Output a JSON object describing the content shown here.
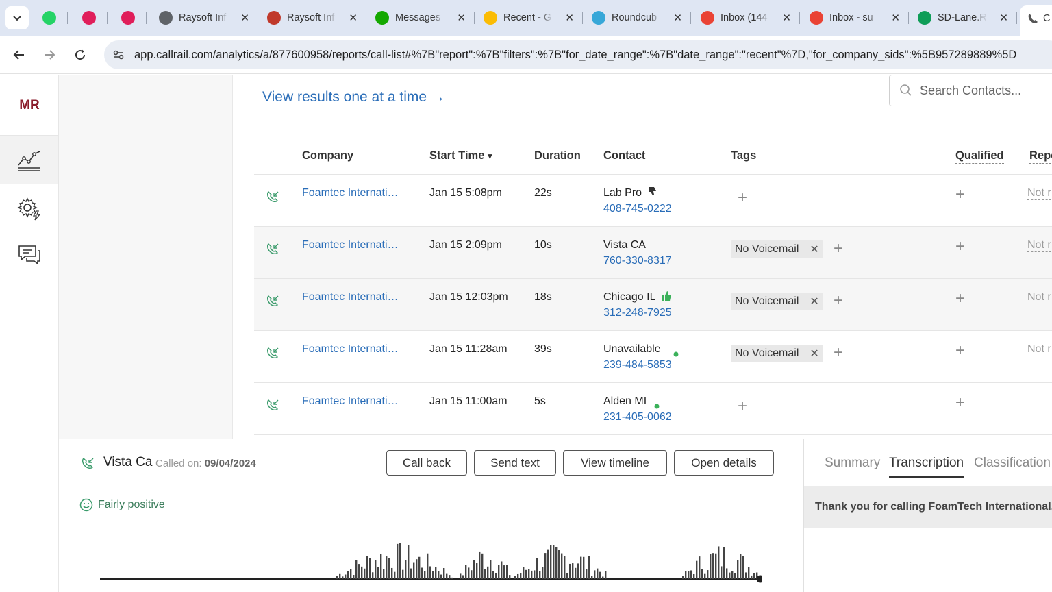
{
  "browser": {
    "tabs": [
      {
        "title": "",
        "icon": "whatsapp-icon",
        "color": "#25d366"
      },
      {
        "title": "",
        "icon": "slack-icon",
        "color": "#e01e5a"
      },
      {
        "title": "",
        "icon": "slack-icon",
        "color": "#e01e5a"
      },
      {
        "title": "Raysoft Inf",
        "icon": "globe-icon",
        "color": "#5f6368"
      },
      {
        "title": "Raysoft Inf",
        "icon": "raysoft-icon",
        "color": "#c0392b"
      },
      {
        "title": "Messages",
        "icon": "upwork-icon",
        "color": "#14a800"
      },
      {
        "title": "Recent - G",
        "icon": "drive-icon",
        "color": "#fbbc04"
      },
      {
        "title": "Roundcub",
        "icon": "roundcube-icon",
        "color": "#37a7d8"
      },
      {
        "title": "Inbox (144",
        "icon": "gmail-icon",
        "color": "#ea4335"
      },
      {
        "title": "Inbox - su",
        "icon": "gmail-icon",
        "color": "#ea4335"
      },
      {
        "title": "SD-Lane.R",
        "icon": "sheets-icon",
        "color": "#0f9d58"
      },
      {
        "title": "C",
        "icon": "callrail-icon",
        "color": "#555555"
      }
    ],
    "url": "app.callrail.com/analytics/a/877600958/reports/call-list#%7B\"report\":%7B\"filters\":%7B\"for_date_range\":%7B\"date_range\":\"recent\"%7D,\"for_company_sids\":%5B957289889%5D"
  },
  "rail": {
    "initials": "MR"
  },
  "list": {
    "view_link": "View results one at a time →",
    "search_placeholder": "Search Contacts...",
    "columns": {
      "company": "Company",
      "start_time": "Start Time",
      "duration": "Duration",
      "contact": "Contact",
      "tags": "Tags",
      "qualified": "Qualified",
      "reported": "Repo"
    },
    "rows": [
      {
        "company": "Foamtec Internati…",
        "start": "Jan 15 5:08pm",
        "duration": "22s",
        "contact": "Lab Pro",
        "phone": "408-745-0222",
        "tag": "",
        "status": "Not r"
      },
      {
        "company": "Foamtec Internati…",
        "start": "Jan 15 2:09pm",
        "duration": "10s",
        "contact": "Vista CA",
        "phone": "760-330-8317",
        "tag": "No Voicemail",
        "status": "Not r"
      },
      {
        "company": "Foamtec Internati…",
        "start": "Jan 15 12:03pm",
        "duration": "18s",
        "contact": "Chicago IL",
        "phone": "312-248-7925",
        "tag": "No Voicemail",
        "status": "Not r"
      },
      {
        "company": "Foamtec Internati…",
        "start": "Jan 15 11:28am",
        "duration": "39s",
        "contact": "Unavailable",
        "phone": "239-484-5853",
        "tag": "No Voicemail",
        "status": "Not r"
      },
      {
        "company": "Foamtec Internati…",
        "start": "Jan 15 11:00am",
        "duration": "5s",
        "contact": "Alden MI",
        "phone": "231-405-0062",
        "tag": "",
        "status": ""
      }
    ]
  },
  "detail": {
    "caller": "Vista Ca",
    "called_label": "Called on:",
    "called_date": "09/04/2024",
    "buttons": {
      "call_back": "Call back",
      "send_text": "Send text",
      "view_timeline": "View timeline",
      "open_details": "Open details"
    },
    "sentiment": "Fairly positive",
    "tabs": {
      "summary": "Summary",
      "transcription": "Transcription",
      "classification": "Classification"
    },
    "transcript_line": "Thank you for calling FoamTech International."
  },
  "colors": {
    "link": "#2a6db8",
    "brand": "#8b1d2c",
    "call_icon": "#3a9b6b",
    "positive": "#3b7d5b"
  }
}
